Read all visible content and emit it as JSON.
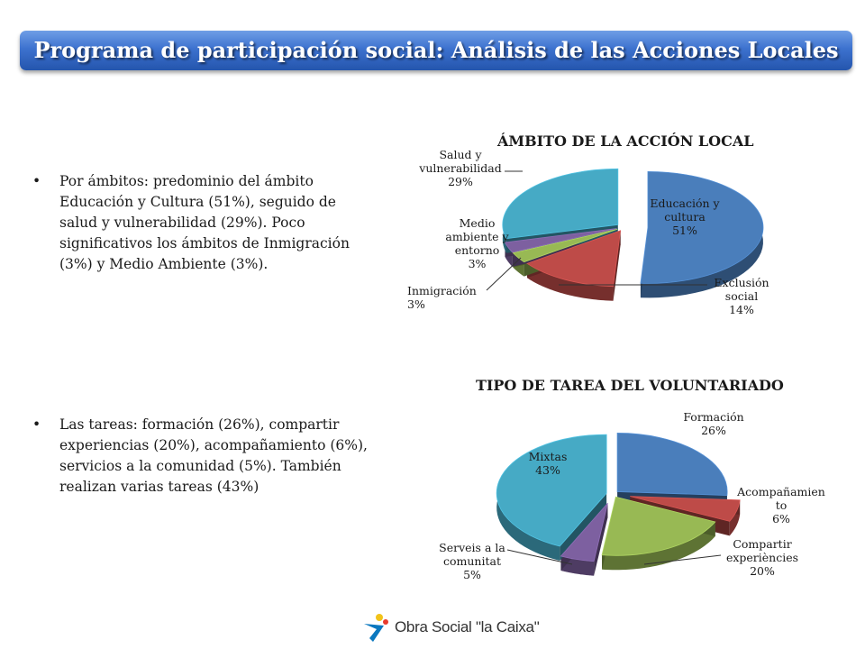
{
  "page": {
    "title": "Programa de participación social: Análisis de las Acciones Locales",
    "bullet_marker": "•",
    "bullets": [
      "Por ámbitos: predominio del ámbito Educación y Cultura (51%), seguido de salud y vulnerabilidad (29%). Poco significativos los ámbitos de Inmigración (3%) y Medio Ambiente (3%).",
      "Las tareas: formación (26%), compartir experiencias (20%), acompañamiento (6%), servicios a la comunidad (5%). También realizan varias tareas (43%)"
    ],
    "logo_text": "Obra Social \"la Caixa\""
  },
  "chart_data": [
    {
      "type": "pie",
      "title": "ÁMBITO DE LA ACCIÓN LOCAL",
      "slices": [
        {
          "label": "Educación y cultura",
          "value": 51,
          "display": "51%",
          "color": "#4a7ebb"
        },
        {
          "label": "Exclusión social",
          "value": 14,
          "display": "14%",
          "color": "#be4b48"
        },
        {
          "label": "Inmigración",
          "value": 3,
          "display": "3%",
          "color": "#98b954"
        },
        {
          "label": "Medio ambiente y entorno",
          "value": 3,
          "display": "3%",
          "color": "#7d60a0"
        },
        {
          "label": "Salud y vulnerabilidad",
          "value": 29,
          "display": "29%",
          "color": "#46aac5"
        }
      ]
    },
    {
      "type": "pie",
      "title": "TIPO DE TAREA DEL VOLUNTARIADO",
      "slices": [
        {
          "label": "Formación",
          "value": 26,
          "display": "26%",
          "color": "#4a7ebb"
        },
        {
          "label": "Acompañamiento",
          "value": 6,
          "display": "6%",
          "color": "#be4b48"
        },
        {
          "label": "Compartir experiències",
          "value": 20,
          "display": "20%",
          "color": "#98b954"
        },
        {
          "label": "Serveis a la comunitat",
          "value": 5,
          "display": "5%",
          "color": "#7d60a0"
        },
        {
          "label": "Mixtas",
          "value": 43,
          "display": "43%",
          "color": "#46aac5"
        }
      ]
    }
  ]
}
